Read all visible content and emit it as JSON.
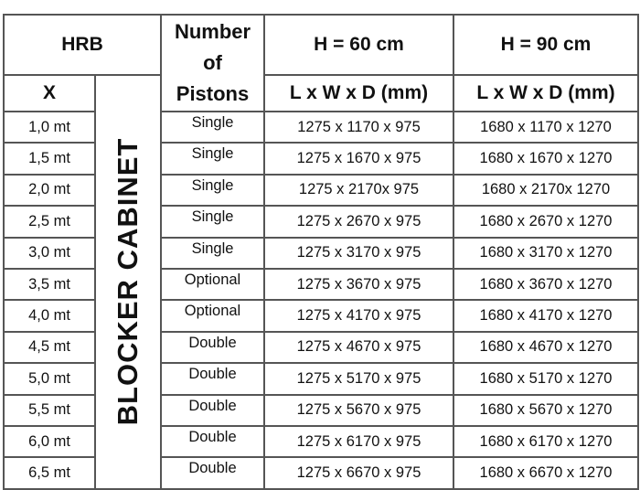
{
  "header": {
    "hrb": "HRB",
    "pistons_header": [
      "Number",
      "of",
      "Pistons"
    ],
    "h60": "H = 60 cm",
    "h90": "H = 90 cm",
    "x": "X",
    "dims60": "L x W x D (mm)",
    "dims90": "L x W x D (mm)",
    "blocker": "BLOCKER CABINET"
  },
  "rows": [
    {
      "x": "1,0 mt",
      "pistons": "Single",
      "h60": "1275 x 1170 x 975",
      "h90": "1680 x 1170 x 1270"
    },
    {
      "x": "1,5 mt",
      "pistons": "Single",
      "h60": "1275 x 1670 x 975",
      "h90": "1680 x 1670 x 1270"
    },
    {
      "x": "2,0 mt",
      "pistons": "Single",
      "h60": "1275 x 2170x 975",
      "h90": "1680 x 2170x 1270"
    },
    {
      "x": "2,5 mt",
      "pistons": "Single",
      "h60": "1275 x 2670 x 975",
      "h90": "1680 x 2670 x 1270"
    },
    {
      "x": "3,0 mt",
      "pistons": "Single",
      "h60": "1275 x 3170 x 975",
      "h90": "1680 x 3170 x 1270"
    },
    {
      "x": "3,5 mt",
      "pistons": "Optional",
      "h60": "1275 x 3670 x 975",
      "h90": "1680 x 3670 x 1270"
    },
    {
      "x": "4,0 mt",
      "pistons": "Optional",
      "h60": "1275 x 4170 x 975",
      "h90": "1680 x 4170 x 1270"
    },
    {
      "x": "4,5 mt",
      "pistons": "Double",
      "h60": "1275 x 4670 x 975",
      "h90": "1680 x 4670 x 1270"
    },
    {
      "x": "5,0 mt",
      "pistons": "Double",
      "h60": "1275 x 5170 x 975",
      "h90": "1680 x 5170 x 1270"
    },
    {
      "x": "5,5 mt",
      "pistons": "Double",
      "h60": "1275 x 5670 x 975",
      "h90": "1680 x 5670 x 1270"
    },
    {
      "x": "6,0 mt",
      "pistons": "Double",
      "h60": "1275 x 6170 x 975",
      "h90": "1680 x 6170 x 1270"
    },
    {
      "x": "6,5 mt",
      "pistons": "Double",
      "h60": "1275 x 6670 x 975",
      "h90": "1680 x 6670 x 1270"
    }
  ]
}
